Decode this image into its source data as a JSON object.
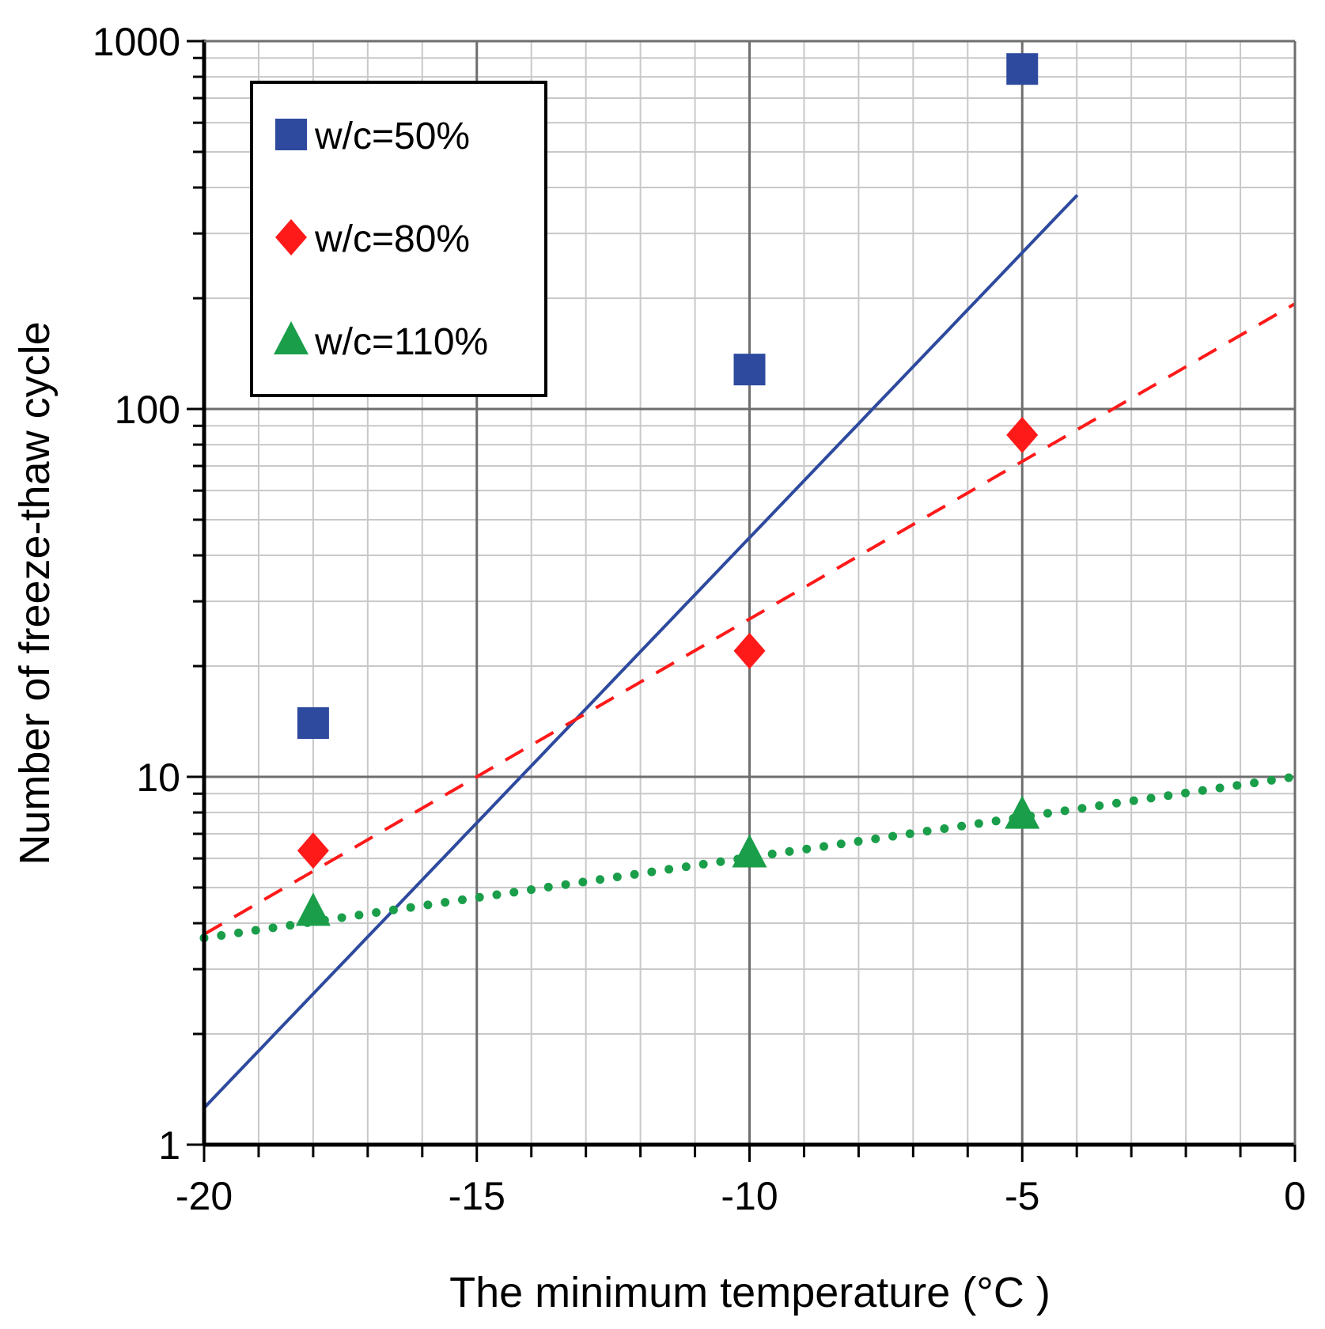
{
  "chart_data": {
    "type": "scatter",
    "title": "",
    "xlabel": "The minimum temperature (°C )",
    "ylabel": "Number of freeze-thaw cycle",
    "xlim": [
      -20,
      0
    ],
    "ylim": [
      1,
      1000
    ],
    "yscale": "log",
    "xticks": [
      -20,
      -15,
      -10,
      -5,
      0
    ],
    "xtick_labels": [
      "-20",
      "-15",
      "-10",
      "-5",
      "0"
    ],
    "yticks": [
      1,
      10,
      100,
      1000
    ],
    "ytick_labels": [
      "1",
      "10",
      "100",
      "1000"
    ],
    "grid": true,
    "legend_position": "top-left",
    "series": [
      {
        "name": "w/c=50%",
        "marker": "square",
        "color": "#2e4a9e",
        "line_style": "solid",
        "points": [
          [
            -18,
            14
          ],
          [
            -10,
            128
          ],
          [
            -5,
            840
          ]
        ],
        "trend": {
          "log10_intercept": 3.2,
          "log10_slope": 0.155,
          "x_range": [
            -20,
            -3.99
          ]
        }
      },
      {
        "name": "w/c=80%",
        "marker": "diamond",
        "color": "#ff1a1a",
        "line_style": "dashed",
        "points": [
          [
            -18,
            6.3
          ],
          [
            -10,
            22
          ],
          [
            -5,
            85
          ]
        ],
        "trend": {
          "log10_intercept": 2.286,
          "log10_slope": 0.0857,
          "x_range": [
            -20,
            0
          ]
        }
      },
      {
        "name": "w/c=110%",
        "marker": "triangle",
        "color": "#1a9e4a",
        "line_style": "dotted",
        "points": [
          [
            -18,
            4.3
          ],
          [
            -10,
            6.2
          ],
          [
            -5,
            7.9
          ]
        ],
        "trend": {
          "log10_intercept": 1.0,
          "log10_slope": 0.0219,
          "x_range": [
            -20,
            0
          ]
        }
      }
    ]
  }
}
